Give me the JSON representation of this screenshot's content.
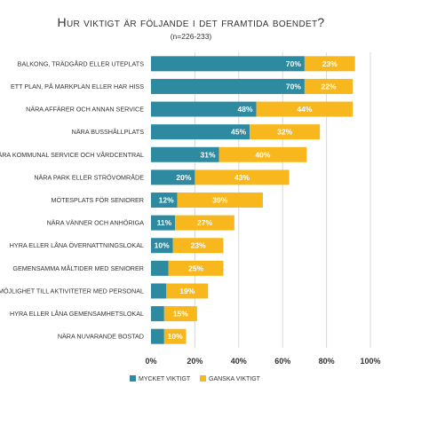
{
  "chart_data": {
    "type": "bar",
    "orientation": "horizontal",
    "stacked": true,
    "title": "Hur viktigt är följande i det framtida boendet?",
    "subtitle": "(n=226-233)",
    "categories": [
      "Balkong, trädgård eller uteplats",
      "Ett plan, på markplan eller har hiss",
      "Nära affärer och annan service",
      "Nära busshållplats",
      "Nära kommunal service och vårdcentral",
      "Nära park eller strövområde",
      "Mötesplats för seniorer",
      "Nära vänner och anhöriga",
      "Hyra eller låna övernattningslokal",
      "Gemensamma måltider med seniorer",
      "Möjlighet till aktiviteter med personal",
      "Hyra eller låna gemensamhetslokal",
      "Nära nuvarande bostad"
    ],
    "series": [
      {
        "name": "Mycket viktigt",
        "color": "#2e8aa0",
        "values": [
          70,
          70,
          48,
          45,
          31,
          20,
          12,
          11,
          10,
          8,
          7,
          6,
          6
        ],
        "labels": [
          "70%",
          "70%",
          "48%",
          "45%",
          "31%",
          "20%",
          "12%",
          "11%",
          "10%",
          "",
          "",
          "",
          ""
        ]
      },
      {
        "name": "Ganska viktigt",
        "color": "#f8b81d",
        "values": [
          23,
          22,
          44,
          32,
          40,
          43,
          39,
          27,
          23,
          25,
          19,
          15,
          10
        ],
        "labels": [
          "23%",
          "22%",
          "44%",
          "32%",
          "40%",
          "43%",
          "39%",
          "27%",
          "23%",
          "25%",
          "19%",
          "15%",
          "10%"
        ]
      }
    ],
    "x_ticks": [
      "0%",
      "20%",
      "40%",
      "60%",
      "80%",
      "100%"
    ],
    "xlim": [
      0,
      100
    ],
    "grid": true,
    "legend_position": "bottom"
  }
}
